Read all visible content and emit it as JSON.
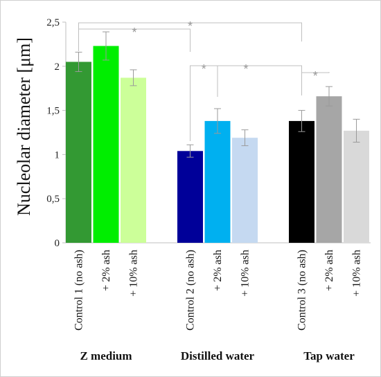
{
  "chart_data": {
    "type": "bar",
    "ylabel": "Nucleolar diameter [μm]",
    "ylim": [
      0,
      2.5
    ],
    "yticks": [
      "0",
      "0,5",
      "1",
      "1,5",
      "2",
      "2,5"
    ],
    "groups": [
      "Z medium",
      "Distilled water",
      "Tap water"
    ],
    "bars": [
      {
        "label": "Control 1 (no ash)",
        "group": 0,
        "value": 2.05,
        "err": 0.11,
        "color": "#339933"
      },
      {
        "label": "+ 2% ash",
        "group": 0,
        "value": 2.23,
        "err": 0.16,
        "color": "#00ee00"
      },
      {
        "label": "+ 10% ash",
        "group": 0,
        "value": 1.87,
        "err": 0.09,
        "color": "#ccff99"
      },
      {
        "label": "Control 2 (no ash)",
        "group": 1,
        "value": 1.04,
        "err": 0.07,
        "color": "#000099"
      },
      {
        "label": "+ 2% ash",
        "group": 1,
        "value": 1.38,
        "err": 0.14,
        "color": "#00b0f0"
      },
      {
        "label": "+ 10% ash",
        "group": 1,
        "value": 1.19,
        "err": 0.09,
        "color": "#c5d9f1"
      },
      {
        "label": "Control 3 (no ash)",
        "group": 2,
        "value": 1.38,
        "err": 0.12,
        "color": "#000000"
      },
      {
        "label": "+ 2% ash",
        "group": 2,
        "value": 1.66,
        "err": 0.11,
        "color": "#a6a6a6"
      },
      {
        "label": "+ 10% ash",
        "group": 2,
        "value": 1.27,
        "err": 0.13,
        "color": "#d9d9d9"
      }
    ],
    "significance": [
      {
        "from": 0,
        "to": 3,
        "label": "*"
      },
      {
        "from": 0,
        "to": 6,
        "label": "*"
      },
      {
        "from": 3,
        "to": 4,
        "label": "*"
      },
      {
        "from": 3,
        "to": 6,
        "label": "*"
      },
      {
        "from": 6,
        "to": 7,
        "label": "*"
      }
    ]
  }
}
